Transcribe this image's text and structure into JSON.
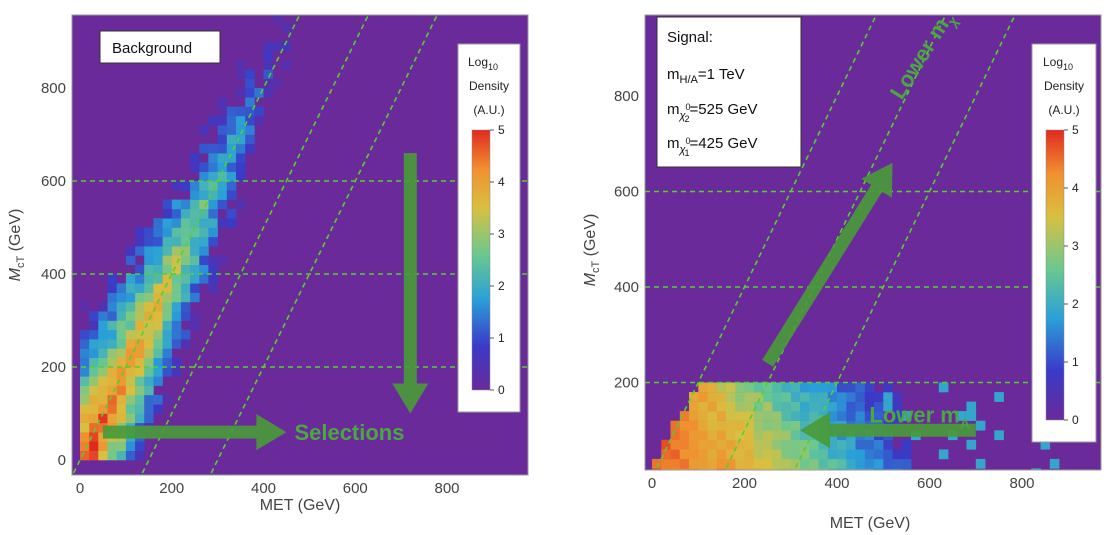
{
  "colors": {
    "plot_bg": "#6a2a9a",
    "guide": "#54d030",
    "arrow": "#4a9a3a",
    "arrow_text": "#4aa840",
    "colormap": [
      "#6a2a9a",
      "#3a3ac8",
      "#2aa0d8",
      "#6ac890",
      "#d8c040",
      "#f09030",
      "#e02a20"
    ]
  },
  "chart_data": [
    {
      "type": "heatmap",
      "title": "",
      "label": "Background",
      "xlabel": "MET (GeV)",
      "ylabel": "M_cT (GeV)",
      "xlim": [
        -10,
        970
      ],
      "ylim": [
        -10,
        975
      ],
      "xticks": [
        0,
        200,
        400,
        600,
        800
      ],
      "yticks": [
        0,
        200,
        400,
        600,
        800
      ],
      "colorbar": {
        "label": [
          "Log",
          "10",
          "Density",
          "(A.U.)"
        ],
        "range": [
          0,
          5
        ],
        "ticks": [
          0,
          1,
          2,
          3,
          4,
          5
        ]
      },
      "bin_size_gev": [
        20,
        20
      ],
      "guides": {
        "horizontal": [
          200,
          400,
          600
        ],
        "diagonal_offsets": [
          0,
          150,
          300
        ],
        "diagonal_slope": 2
      },
      "arrows": [
        {
          "from": [
            50,
            60
          ],
          "to": [
            450,
            60
          ],
          "label": "Selections"
        },
        {
          "from": [
            720,
            660
          ],
          "to": [
            720,
            100
          ],
          "label": ""
        }
      ],
      "density_profile": {
        "description_free": true,
        "ridge_slope": 2.1,
        "ridge_offset": -20,
        "peak_log10": 5,
        "y_max_filled": 960
      }
    },
    {
      "type": "heatmap",
      "title": "",
      "label_lines": [
        "Signal:",
        "m",
        "H/A",
        "=1 TeV",
        "m",
        "χ",
        "0",
        "2",
        "=525 GeV",
        "m",
        "χ",
        "0",
        "1",
        "=425 GeV"
      ],
      "xlabel": "MET (GeV)",
      "ylabel": "M_cT (GeV)",
      "xlim": [
        -10,
        970
      ],
      "ylim": [
        0,
        960
      ],
      "xticks": [
        0,
        200,
        400,
        600,
        800
      ],
      "yticks": [
        200,
        400,
        600,
        800
      ],
      "colorbar": {
        "label": [
          "Log",
          "10",
          "Density",
          "(A.U.)"
        ],
        "range": [
          0,
          5
        ],
        "ticks": [
          0,
          1,
          2,
          3,
          4,
          5
        ]
      },
      "guides": {
        "horizontal": [
          200,
          400,
          600
        ],
        "diagonal_offsets": [
          0,
          150,
          300
        ],
        "diagonal_slope": 2
      },
      "arrows": [
        {
          "from": [
            250,
            240
          ],
          "to": [
            520,
            660
          ],
          "label": "Lower m",
          "sub": "χ"
        },
        {
          "from": [
            700,
            100
          ],
          "to": [
            320,
            100
          ],
          "label": "Lower m",
          "sub": "A"
        }
      ],
      "density_profile": {
        "y_max_filled": 200,
        "x_max_filled": 560,
        "peak_log10": 5
      }
    }
  ]
}
